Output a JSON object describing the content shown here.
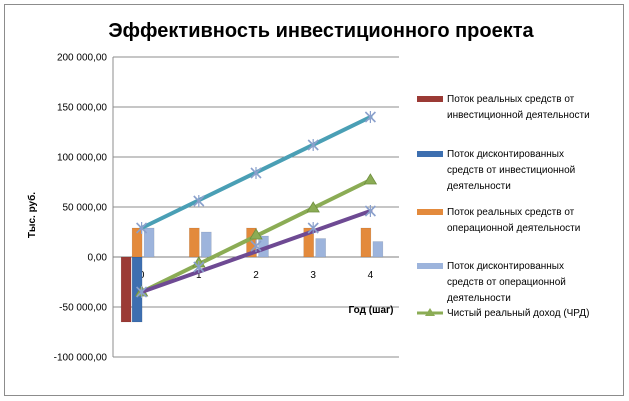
{
  "chart_data": {
    "type": "bar",
    "title": "Эффективность инвестиционного проекта",
    "xlabel": "Год (шаг)",
    "ylabel": "Тыс. руб.",
    "ylim": [
      -100000,
      200000
    ],
    "yticks": [
      "200 000,00",
      "150 000,00",
      "100 000,00",
      "50 000,00",
      "0,00",
      "-50 000,00",
      "-100 000,00"
    ],
    "ytick_values": [
      200000,
      150000,
      100000,
      50000,
      0,
      -50000,
      -100000
    ],
    "categories": [
      "0",
      "1",
      "2",
      "3",
      "4"
    ],
    "grid": "horizontal",
    "legend_position": "right",
    "bar_series": [
      {
        "name": "Поток реальных средств от инвестиционной деятельности",
        "color": "#9b3a35",
        "values": [
          -65000,
          0,
          0,
          0,
          0
        ]
      },
      {
        "name": "Поток дисконтированных средств от инвестиционной деятельности",
        "color": "#3d6fb0",
        "values": [
          -65000,
          0,
          0,
          0,
          0
        ]
      },
      {
        "name": "Поток реальных средств от операционной деятельности",
        "color": "#e38a3c",
        "values": [
          29000,
          29000,
          29000,
          29000,
          29000
        ]
      },
      {
        "name": "Поток дисконтированных средств от операционной деятельности",
        "color": "#9db4dc",
        "values": [
          29000,
          25000,
          21000,
          18500,
          15500
        ]
      }
    ],
    "line_series": [
      {
        "name": "Чистый реальный доход (ЧРД)",
        "color": "#8bac55",
        "marker": "triangle",
        "values": [
          -35000,
          -6000,
          22000,
          49000,
          77000
        ],
        "in_legend": true
      },
      {
        "name": "",
        "color": "#4a9fb5",
        "marker": "x",
        "values": [
          29000,
          56000,
          84000,
          112000,
          140000
        ],
        "in_legend": false
      },
      {
        "name": "",
        "color": "#6e4a93",
        "marker": "x",
        "values": [
          -35000,
          -10000,
          11000,
          29000,
          46000
        ],
        "in_legend": false
      }
    ],
    "legend": [
      {
        "lines": [
          "Поток реальных средств от",
          "инвестиционной деятельности"
        ],
        "color": "#9b3a35",
        "kind": "bar"
      },
      {
        "lines": [
          "Поток дисконтированных",
          "средств от инвестиционной",
          "деятельности"
        ],
        "color": "#3d6fb0",
        "kind": "bar"
      },
      {
        "lines": [
          "Поток реальных средств от",
          "операционной деятельности"
        ],
        "color": "#e38a3c",
        "kind": "bar"
      },
      {
        "lines": [
          "Поток дисконтированных",
          "средств от операционной",
          "деятельности"
        ],
        "color": "#9db4dc",
        "kind": "bar"
      },
      {
        "lines": [
          "Чистый реальный доход (ЧРД)"
        ],
        "color": "#8bac55",
        "kind": "line"
      }
    ]
  }
}
